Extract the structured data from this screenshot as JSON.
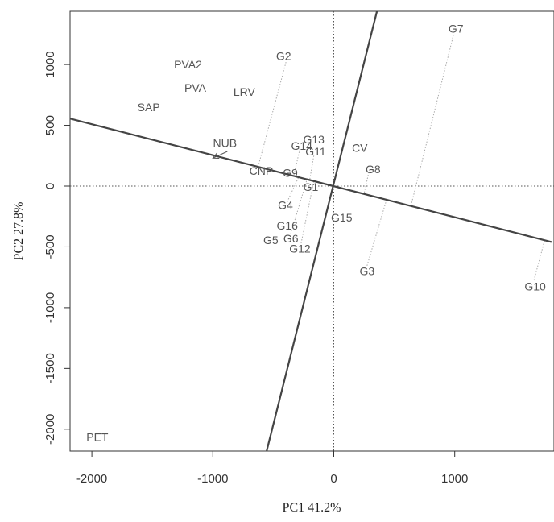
{
  "chart_data": {
    "type": "scatter",
    "title": "",
    "xlabel": "PC1 41.2%",
    "ylabel": "PC2 27.8%",
    "xlim": [
      -2000,
      1800
    ],
    "ylim": [
      -2200,
      1450
    ],
    "xticks": [
      "-2000",
      "-1000",
      "0",
      "1000"
    ],
    "xtick_values": [
      -2000,
      -1000,
      0,
      1000
    ],
    "yticks": [
      "-2000",
      "-1500",
      "-1000",
      "-500",
      "0",
      "500",
      "1000"
    ],
    "ytick_values": [
      -2000,
      -1500,
      -1000,
      -500,
      0,
      500,
      1000
    ],
    "grid": false,
    "colors": {
      "frame": "#333333",
      "axis_line": "#444444",
      "guide": "#aaaaaa",
      "text": "#555555"
    },
    "reference_lines": {
      "x": 0,
      "y": 0,
      "style": "dotted"
    },
    "axis_lines": [
      {
        "x1": -2200,
        "y1": 560,
        "x2": 1800,
        "y2": -460
      },
      {
        "x1": -560,
        "y1": -2200,
        "x2": 360,
        "y2": 1450
      }
    ],
    "arrow": {
      "from": {
        "x": -880,
        "y": 285
      },
      "to": {
        "x": -1000,
        "y": 230
      }
    },
    "points": [
      {
        "label": "PVA2",
        "x": -1205,
        "y": 1000
      },
      {
        "label": "PVA",
        "x": -1145,
        "y": 810
      },
      {
        "label": "LRV",
        "x": -740,
        "y": 775
      },
      {
        "label": "SAP",
        "x": -1530,
        "y": 650
      },
      {
        "label": "NUB",
        "x": -900,
        "y": 355
      },
      {
        "label": "CNP",
        "x": -600,
        "y": 125
      },
      {
        "label": "CV",
        "x": 215,
        "y": 315
      },
      {
        "label": "PET",
        "x": -1955,
        "y": -2065
      },
      {
        "label": "G1",
        "x": -190,
        "y": -5
      },
      {
        "label": "G2",
        "x": -415,
        "y": 1070
      },
      {
        "label": "G3",
        "x": 275,
        "y": -700
      },
      {
        "label": "G4",
        "x": -400,
        "y": -155
      },
      {
        "label": "G5",
        "x": -520,
        "y": -445
      },
      {
        "label": "G6",
        "x": -355,
        "y": -430
      },
      {
        "label": "G7",
        "x": 1010,
        "y": 1295
      },
      {
        "label": "G8",
        "x": 325,
        "y": 140
      },
      {
        "label": "G9",
        "x": -360,
        "y": 110
      },
      {
        "label": "G10",
        "x": 1665,
        "y": -825
      },
      {
        "label": "G11",
        "x": -150,
        "y": 285
      },
      {
        "label": "G12",
        "x": -280,
        "y": -515
      },
      {
        "label": "G13",
        "x": -165,
        "y": 385
      },
      {
        "label": "G14",
        "x": -265,
        "y": 330
      },
      {
        "label": "G15",
        "x": 65,
        "y": -260
      },
      {
        "label": "G16",
        "x": -385,
        "y": -325
      }
    ],
    "projections": [
      {
        "from": {
          "x": -395,
          "y": 1020
        },
        "to": {
          "x": -620,
          "y": 180
        }
      },
      {
        "from": {
          "x": 990,
          "y": 1245
        },
        "to": {
          "x": 640,
          "y": -155
        }
      },
      {
        "from": {
          "x": 1655,
          "y": -775
        },
        "to": {
          "x": 1745,
          "y": -440
        }
      },
      {
        "from": {
          "x": 275,
          "y": -655
        },
        "to": {
          "x": 440,
          "y": -100
        }
      },
      {
        "from": {
          "x": 300,
          "y": 160
        },
        "to": {
          "x": 250,
          "y": -65
        }
      },
      {
        "from": {
          "x": -280,
          "y": 305
        },
        "to": {
          "x": -330,
          "y": 90
        }
      },
      {
        "from": {
          "x": -165,
          "y": 250
        },
        "to": {
          "x": -200,
          "y": 45
        }
      },
      {
        "from": {
          "x": -355,
          "y": -390
        },
        "to": {
          "x": -220,
          "y": 60
        }
      },
      {
        "from": {
          "x": -270,
          "y": -470
        },
        "to": {
          "x": -165,
          "y": 40
        }
      },
      {
        "from": {
          "x": -385,
          "y": -130
        },
        "to": {
          "x": -290,
          "y": 75
        }
      }
    ]
  }
}
